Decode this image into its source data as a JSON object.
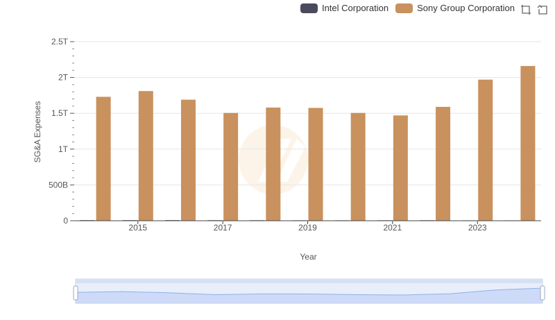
{
  "chart_data": {
    "type": "bar",
    "title": "",
    "xlabel": "Year",
    "ylabel": "SG&A Expenses",
    "categories": [
      "2014",
      "2015",
      "2016",
      "2017",
      "2018",
      "2019",
      "2020",
      "2021",
      "2022",
      "2023",
      "2024"
    ],
    "x_tick_labels": [
      "2015",
      "2017",
      "2019",
      "2021",
      "2023"
    ],
    "y_tick_labels": [
      "0",
      "500B",
      "1T",
      "1.5T",
      "2T",
      "2.5T"
    ],
    "ylim": [
      0,
      2500000000000
    ],
    "grid": true,
    "legend_position": "top-right",
    "series": [
      {
        "name": "Intel Corporation",
        "color": "#4a4a5e",
        "values": [
          8100000000,
          7900000000,
          8400000000,
          7500000000,
          7000000000,
          6400000000,
          6200000000,
          6500000000,
          7000000000,
          5600000000,
          5500000000
        ]
      },
      {
        "name": "Sony Group Corporation",
        "color": "#c8915e",
        "values": [
          1730000000000,
          1810000000000,
          1690000000000,
          1505000000000,
          1580000000000,
          1575000000000,
          1505000000000,
          1470000000000,
          1590000000000,
          1970000000000,
          2160000000000
        ]
      }
    ]
  },
  "toolbar": {
    "icons": [
      "zoom-icon",
      "reset-icon"
    ]
  },
  "brush_navigator": {
    "series_index": 1,
    "selection": [
      0,
      1
    ]
  }
}
